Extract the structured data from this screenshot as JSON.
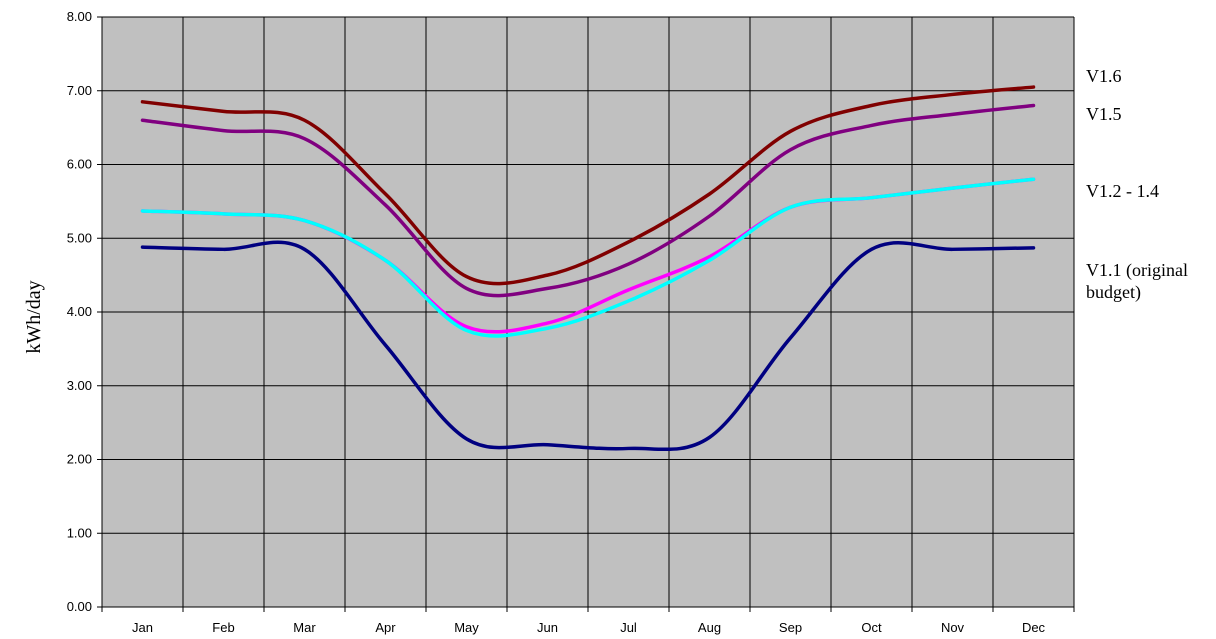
{
  "chart_data": {
    "type": "line",
    "title": "",
    "xlabel": "",
    "ylabel": "kWh/day",
    "ylim": [
      0,
      8
    ],
    "yticks": [
      "0.00",
      "1.00",
      "2.00",
      "3.00",
      "4.00",
      "5.00",
      "6.00",
      "7.00",
      "8.00"
    ],
    "categories": [
      "Jan",
      "Feb",
      "Mar",
      "Apr",
      "May",
      "Jun",
      "Jul",
      "Aug",
      "Sep",
      "Oct",
      "Nov",
      "Dec"
    ],
    "grid": true,
    "plot_background": "#C0C0C0",
    "legend_position": "right",
    "series": [
      {
        "name": "V1.6",
        "color": "#800000",
        "values": [
          6.85,
          6.72,
          6.6,
          5.6,
          4.48,
          4.5,
          4.95,
          5.6,
          6.45,
          6.8,
          6.95,
          7.05
        ]
      },
      {
        "name": "V1.5",
        "color": "#800080",
        "values": [
          6.6,
          6.46,
          6.35,
          5.45,
          4.32,
          4.32,
          4.65,
          5.3,
          6.2,
          6.53,
          6.68,
          6.8
        ]
      },
      {
        "name": "",
        "color": "#FF00FF",
        "values": [
          5.37,
          5.33,
          5.24,
          4.7,
          3.8,
          3.85,
          4.3,
          4.75,
          5.42,
          5.55,
          5.68,
          5.8
        ]
      },
      {
        "name": "V1.2 - 1.4",
        "color": "#00FFFF",
        "values": [
          5.37,
          5.33,
          5.24,
          4.7,
          3.75,
          3.78,
          4.15,
          4.7,
          5.42,
          5.55,
          5.68,
          5.8
        ]
      },
      {
        "name": "V1.1 (original budget)",
        "color": "#000080",
        "values": [
          4.88,
          4.85,
          4.85,
          3.55,
          2.28,
          2.2,
          2.15,
          2.3,
          3.65,
          4.85,
          4.85,
          4.87
        ]
      }
    ],
    "legend_labels": [
      {
        "series": 0,
        "lines": [
          "V1.6"
        ]
      },
      {
        "series": 1,
        "lines": [
          "V1.5"
        ]
      },
      {
        "series": 3,
        "lines": [
          "V1.2 - 1.4"
        ]
      },
      {
        "series": 4,
        "lines": [
          "V1.1 (original",
          "budget)"
        ]
      }
    ]
  }
}
